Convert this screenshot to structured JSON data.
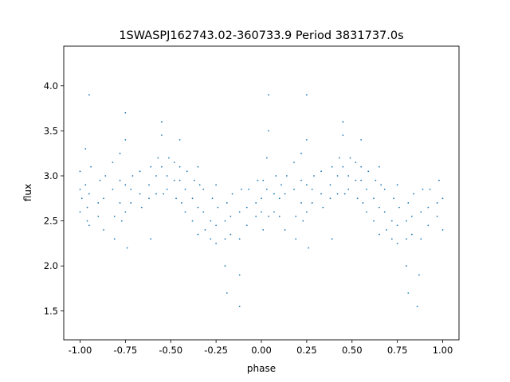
{
  "chart_data": {
    "type": "scatter",
    "title": "1SWASPJ162743.02-360733.9 Period 3831737.0s",
    "xlabel": "phase",
    "ylabel": "flux",
    "xlim": [
      -1.09,
      1.09
    ],
    "ylim": [
      1.18,
      4.44
    ],
    "xticks": [
      "-1.00",
      "-0.75",
      "-0.50",
      "-0.25",
      "0.00",
      "0.25",
      "0.50",
      "0.75",
      "1.00"
    ],
    "yticks": [
      "1.5",
      "2.0",
      "2.5",
      "3.0",
      "3.5",
      "4.0"
    ],
    "grid": false,
    "marker_color": "#1f77b4",
    "points": [
      [
        -1.0,
        2.85
      ],
      [
        -1.0,
        2.6
      ],
      [
        -1.0,
        3.05
      ],
      [
        -0.99,
        2.75
      ],
      [
        -0.97,
        2.9
      ],
      [
        -0.97,
        3.3
      ],
      [
        -0.96,
        2.65
      ],
      [
        -0.96,
        2.5
      ],
      [
        -0.95,
        2.8
      ],
      [
        -0.95,
        3.9
      ],
      [
        -0.95,
        2.45
      ],
      [
        -0.94,
        3.1
      ],
      [
        -0.9,
        2.7
      ],
      [
        -0.9,
        2.55
      ],
      [
        -0.89,
        2.95
      ],
      [
        -0.87,
        2.75
      ],
      [
        -0.87,
        2.4
      ],
      [
        -0.86,
        3.0
      ],
      [
        -0.82,
        2.85
      ],
      [
        -0.82,
        3.15
      ],
      [
        -0.81,
        2.55
      ],
      [
        -0.81,
        2.3
      ],
      [
        -0.78,
        2.95
      ],
      [
        -0.78,
        2.7
      ],
      [
        -0.78,
        3.25
      ],
      [
        -0.77,
        2.5
      ],
      [
        -0.75,
        2.9
      ],
      [
        -0.75,
        2.6
      ],
      [
        -0.75,
        3.4
      ],
      [
        -0.74,
        2.2
      ],
      [
        -0.75,
        3.7
      ],
      [
        -0.72,
        2.85
      ],
      [
        -0.72,
        2.7
      ],
      [
        -0.71,
        3.0
      ],
      [
        -0.67,
        2.8
      ],
      [
        -0.67,
        3.05
      ],
      [
        -0.66,
        2.65
      ],
      [
        -0.62,
        2.9
      ],
      [
        -0.62,
        2.75
      ],
      [
        -0.61,
        3.1
      ],
      [
        -0.61,
        2.3
      ],
      [
        -0.58,
        3.0
      ],
      [
        -0.58,
        2.8
      ],
      [
        -0.57,
        3.2
      ],
      [
        -0.55,
        3.1
      ],
      [
        -0.55,
        3.45
      ],
      [
        -0.54,
        2.8
      ],
      [
        -0.55,
        3.6
      ],
      [
        -0.52,
        3.0
      ],
      [
        -0.52,
        2.85
      ],
      [
        -0.51,
        3.2
      ],
      [
        -0.48,
        2.95
      ],
      [
        -0.48,
        3.15
      ],
      [
        -0.47,
        2.75
      ],
      [
        -0.45,
        2.95
      ],
      [
        -0.45,
        3.1
      ],
      [
        -0.44,
        2.7
      ],
      [
        -0.45,
        3.4
      ],
      [
        -0.42,
        2.85
      ],
      [
        -0.42,
        2.6
      ],
      [
        -0.41,
        3.05
      ],
      [
        -0.38,
        2.75
      ],
      [
        -0.38,
        2.5
      ],
      [
        -0.37,
        2.95
      ],
      [
        -0.35,
        2.65
      ],
      [
        -0.35,
        2.35
      ],
      [
        -0.34,
        2.9
      ],
      [
        -0.35,
        3.1
      ],
      [
        -0.32,
        2.6
      ],
      [
        -0.32,
        2.85
      ],
      [
        -0.31,
        2.4
      ],
      [
        -0.28,
        2.5
      ],
      [
        -0.28,
        2.3
      ],
      [
        -0.27,
        2.75
      ],
      [
        -0.25,
        2.45
      ],
      [
        -0.25,
        2.25
      ],
      [
        -0.24,
        2.65
      ],
      [
        -0.25,
        2.9
      ],
      [
        -0.2,
        2.5
      ],
      [
        -0.2,
        2.3
      ],
      [
        -0.19,
        2.7
      ],
      [
        -0.2,
        2.0
      ],
      [
        -0.19,
        1.7
      ],
      [
        -0.17,
        2.55
      ],
      [
        -0.17,
        2.35
      ],
      [
        -0.16,
        2.8
      ],
      [
        -0.12,
        2.6
      ],
      [
        -0.12,
        2.3
      ],
      [
        -0.11,
        2.85
      ],
      [
        -0.12,
        1.9
      ],
      [
        -0.12,
        1.55
      ],
      [
        -0.08,
        2.65
      ],
      [
        -0.08,
        2.45
      ],
      [
        -0.07,
        2.85
      ],
      [
        -0.03,
        2.7
      ],
      [
        -0.03,
        2.55
      ],
      [
        -0.02,
        2.95
      ],
      [
        0.0,
        2.75
      ],
      [
        0.0,
        2.6
      ],
      [
        0.01,
        2.95
      ],
      [
        0.01,
        2.4
      ],
      [
        0.03,
        2.85
      ],
      [
        0.03,
        3.2
      ],
      [
        0.04,
        2.55
      ],
      [
        0.04,
        3.9
      ],
      [
        0.04,
        3.5
      ],
      [
        0.07,
        2.8
      ],
      [
        0.07,
        2.6
      ],
      [
        0.08,
        3.0
      ],
      [
        0.1,
        2.75
      ],
      [
        0.1,
        2.55
      ],
      [
        0.11,
        2.9
      ],
      [
        0.13,
        2.8
      ],
      [
        0.13,
        2.4
      ],
      [
        0.14,
        3.0
      ],
      [
        0.18,
        2.85
      ],
      [
        0.18,
        3.15
      ],
      [
        0.19,
        2.55
      ],
      [
        0.19,
        2.3
      ],
      [
        0.22,
        2.95
      ],
      [
        0.22,
        2.7
      ],
      [
        0.22,
        3.25
      ],
      [
        0.23,
        2.5
      ],
      [
        0.25,
        2.9
      ],
      [
        0.25,
        2.6
      ],
      [
        0.25,
        3.4
      ],
      [
        0.26,
        2.2
      ],
      [
        0.25,
        3.9
      ],
      [
        0.28,
        2.85
      ],
      [
        0.28,
        2.7
      ],
      [
        0.29,
        3.0
      ],
      [
        0.33,
        2.8
      ],
      [
        0.33,
        3.05
      ],
      [
        0.34,
        2.65
      ],
      [
        0.38,
        2.9
      ],
      [
        0.38,
        2.75
      ],
      [
        0.39,
        3.1
      ],
      [
        0.39,
        2.3
      ],
      [
        0.42,
        3.0
      ],
      [
        0.42,
        2.8
      ],
      [
        0.43,
        3.2
      ],
      [
        0.45,
        3.1
      ],
      [
        0.45,
        3.45
      ],
      [
        0.46,
        2.8
      ],
      [
        0.45,
        3.6
      ],
      [
        0.48,
        3.0
      ],
      [
        0.48,
        2.85
      ],
      [
        0.49,
        3.2
      ],
      [
        0.52,
        2.95
      ],
      [
        0.52,
        3.15
      ],
      [
        0.53,
        2.75
      ],
      [
        0.55,
        2.95
      ],
      [
        0.55,
        3.1
      ],
      [
        0.56,
        2.7
      ],
      [
        0.55,
        3.4
      ],
      [
        0.58,
        2.85
      ],
      [
        0.58,
        2.6
      ],
      [
        0.59,
        3.05
      ],
      [
        0.62,
        2.75
      ],
      [
        0.62,
        2.5
      ],
      [
        0.63,
        2.95
      ],
      [
        0.65,
        2.65
      ],
      [
        0.65,
        2.35
      ],
      [
        0.66,
        2.9
      ],
      [
        0.65,
        3.1
      ],
      [
        0.68,
        2.6
      ],
      [
        0.68,
        2.85
      ],
      [
        0.69,
        2.4
      ],
      [
        0.72,
        2.5
      ],
      [
        0.72,
        2.3
      ],
      [
        0.73,
        2.75
      ],
      [
        0.75,
        2.45
      ],
      [
        0.75,
        2.25
      ],
      [
        0.76,
        2.65
      ],
      [
        0.75,
        2.9
      ],
      [
        0.8,
        2.5
      ],
      [
        0.8,
        2.3
      ],
      [
        0.81,
        2.7
      ],
      [
        0.8,
        2.0
      ],
      [
        0.81,
        1.7
      ],
      [
        0.83,
        2.55
      ],
      [
        0.83,
        2.35
      ],
      [
        0.84,
        2.8
      ],
      [
        0.88,
        2.6
      ],
      [
        0.88,
        2.3
      ],
      [
        0.89,
        2.85
      ],
      [
        0.87,
        1.9
      ],
      [
        0.86,
        1.55
      ],
      [
        0.92,
        2.65
      ],
      [
        0.92,
        2.45
      ],
      [
        0.93,
        2.85
      ],
      [
        0.97,
        2.7
      ],
      [
        0.97,
        2.55
      ],
      [
        0.98,
        2.95
      ],
      [
        1.0,
        2.75
      ],
      [
        1.0,
        2.4
      ]
    ]
  }
}
